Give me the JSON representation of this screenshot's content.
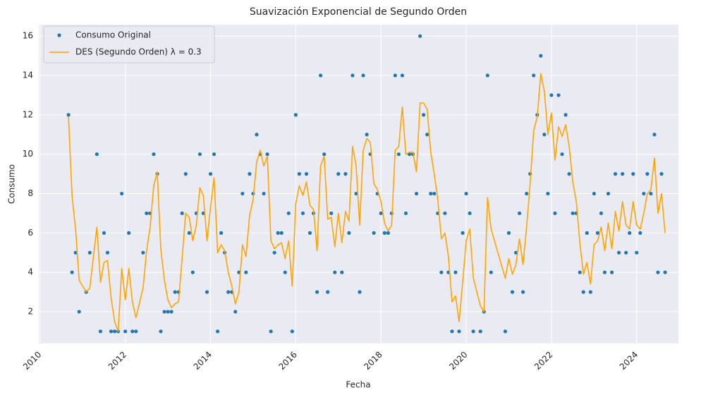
{
  "chart_data": {
    "type": "line",
    "title": "Suavización Exponencial de Segundo Orden",
    "x_label": "Fecha",
    "y_label": "Consumo",
    "xlim": [
      2009.97,
      2024.98
    ],
    "ylim": [
      0.39,
      16.58
    ],
    "xticks": [
      2010,
      2012,
      2014,
      2016,
      2018,
      2020,
      2022,
      2024
    ],
    "yticks": [
      2,
      4,
      6,
      8,
      10,
      12,
      14,
      16
    ],
    "grid": true,
    "legend": "upper left",
    "x": [
      2010.667,
      2010.75,
      2010.833,
      2010.917,
      2011.083,
      2011.167,
      2011.333,
      2011.417,
      2011.5,
      2011.583,
      2011.667,
      2011.75,
      2011.833,
      2011.917,
      2012,
      2012.083,
      2012.167,
      2012.25,
      2012.417,
      2012.5,
      2012.583,
      2012.667,
      2012.75,
      2012.833,
      2012.917,
      2013,
      2013.083,
      2013.167,
      2013.25,
      2013.333,
      2013.417,
      2013.5,
      2013.583,
      2013.667,
      2013.75,
      2013.833,
      2013.917,
      2014,
      2014.083,
      2014.167,
      2014.25,
      2014.333,
      2014.417,
      2014.5,
      2014.583,
      2014.667,
      2014.75,
      2014.833,
      2014.917,
      2015,
      2015.083,
      2015.167,
      2015.25,
      2015.333,
      2015.417,
      2015.5,
      2015.583,
      2015.667,
      2015.75,
      2015.833,
      2015.917,
      2016,
      2016.083,
      2016.167,
      2016.25,
      2016.333,
      2016.417,
      2016.5,
      2016.583,
      2016.667,
      2016.75,
      2016.833,
      2016.917,
      2017,
      2017.083,
      2017.167,
      2017.25,
      2017.333,
      2017.417,
      2017.5,
      2017.583,
      2017.667,
      2017.75,
      2017.833,
      2017.917,
      2018,
      2018.083,
      2018.167,
      2018.25,
      2018.333,
      2018.417,
      2018.5,
      2018.583,
      2018.667,
      2018.75,
      2018.833,
      2018.917,
      2019,
      2019.083,
      2019.167,
      2019.25,
      2019.333,
      2019.417,
      2019.5,
      2019.583,
      2019.667,
      2019.75,
      2019.833,
      2019.917,
      2020,
      2020.083,
      2020.167,
      2020.333,
      2020.417,
      2020.5,
      2020.583,
      2020.917,
      2021,
      2021.083,
      2021.167,
      2021.25,
      2021.333,
      2021.417,
      2021.5,
      2021.583,
      2021.667,
      2021.75,
      2021.833,
      2021.917,
      2022,
      2022.083,
      2022.167,
      2022.25,
      2022.333,
      2022.417,
      2022.5,
      2022.583,
      2022.667,
      2022.75,
      2022.833,
      2022.917,
      2023,
      2023.083,
      2023.167,
      2023.25,
      2023.333,
      2023.417,
      2023.5,
      2023.583,
      2023.667,
      2023.75,
      2023.833,
      2023.917,
      2024,
      2024.083,
      2024.167,
      2024.25,
      2024.333,
      2024.417,
      2024.5,
      2024.583,
      2024.667
    ],
    "series": [
      {
        "name": "Consumo Original",
        "color": "#1f77b4",
        "mode": "markers",
        "values": [
          12,
          4,
          5,
          2,
          3,
          5,
          10,
          1,
          6,
          5,
          1,
          1,
          1,
          8,
          1,
          6,
          1,
          1,
          5,
          7,
          7,
          10,
          9,
          1,
          2,
          2,
          2,
          3,
          3,
          7,
          9,
          6,
          4,
          7,
          10,
          7,
          3,
          9,
          10,
          1,
          6,
          5,
          3,
          3,
          2,
          4,
          8,
          4,
          9,
          8,
          11,
          10,
          8,
          10,
          1,
          5,
          6,
          6,
          4,
          7,
          1,
          12,
          9,
          7,
          9,
          6,
          7,
          3,
          14,
          10,
          3,
          7,
          4,
          9,
          4,
          9,
          6,
          14,
          8,
          3,
          14,
          11,
          10,
          6,
          8,
          7,
          6,
          6,
          7,
          14,
          10,
          14,
          7,
          10,
          10,
          8,
          16,
          12,
          11,
          8,
          8,
          7,
          4,
          7,
          4,
          1,
          4,
          1,
          6,
          8,
          7,
          1,
          1,
          2,
          14,
          4,
          1,
          6,
          3,
          5,
          7,
          3,
          8,
          9,
          14,
          12,
          15,
          11,
          8,
          13,
          7,
          13,
          10,
          12,
          9,
          7,
          7,
          4,
          3,
          6,
          3,
          8,
          6,
          7,
          4,
          8,
          4,
          9,
          5,
          9,
          5,
          6,
          9,
          5,
          6,
          8,
          9,
          8,
          11,
          4,
          9,
          4
        ]
      },
      {
        "name": "DES (Segundo Orden) λ = 0.3",
        "color": "#ffa500",
        "mode": "line",
        "values": [
          11.9,
          7.9,
          6.2,
          3.6,
          3.0,
          3.2,
          6.3,
          3.5,
          4.5,
          4.6,
          2.7,
          1.5,
          1.0,
          4.2,
          2.6,
          4.2,
          2.5,
          1.7,
          3.2,
          5.1,
          6.3,
          8.4,
          9.1,
          5.2,
          3.6,
          2.6,
          2.2,
          2.4,
          2.5,
          4.7,
          7.0,
          6.8,
          5.6,
          6.4,
          8.3,
          7.9,
          5.6,
          7.3,
          8.8,
          5.0,
          5.4,
          5.1,
          4.0,
          3.3,
          2.4,
          3.0,
          5.4,
          4.8,
          6.9,
          7.7,
          9.6,
          10.2,
          9.4,
          9.9,
          5.6,
          5.2,
          5.4,
          5.5,
          4.7,
          5.6,
          3.3,
          7.5,
          8.4,
          7.9,
          8.6,
          7.4,
          7.2,
          5.1,
          9.4,
          9.9,
          6.7,
          6.8,
          5.3,
          7.0,
          5.5,
          7.1,
          6.6,
          10.4,
          9.4,
          6.4,
          10.2,
          10.8,
          10.6,
          8.5,
          8.2,
          7.6,
          6.5,
          6.1,
          6.4,
          10.2,
          10.4,
          12.4,
          10.0,
          10.1,
          10.1,
          9.1,
          12.6,
          12.6,
          12.3,
          10.1,
          9.0,
          7.7,
          5.7,
          6.0,
          4.8,
          2.5,
          2.8,
          1.5,
          3.5,
          5.6,
          6.2,
          3.7,
          2.3,
          2.0,
          7.8,
          6.2,
          3.7,
          4.7,
          3.9,
          4.4,
          5.7,
          4.4,
          6.3,
          8.5,
          11.2,
          11.9,
          14.1,
          13.2,
          11.0,
          12.1,
          9.7,
          11.4,
          10.9,
          11.5,
          10.4,
          8.6,
          7.6,
          5.5,
          3.9,
          4.5,
          3.4,
          5.4,
          5.6,
          6.3,
          5.1,
          6.5,
          5.2,
          7.1,
          6.1,
          7.6,
          6.4,
          6.2,
          7.6,
          6.4,
          6.2,
          7.0,
          8.0,
          8.2,
          9.8,
          7.0,
          8.0,
          6.0
        ]
      }
    ]
  }
}
